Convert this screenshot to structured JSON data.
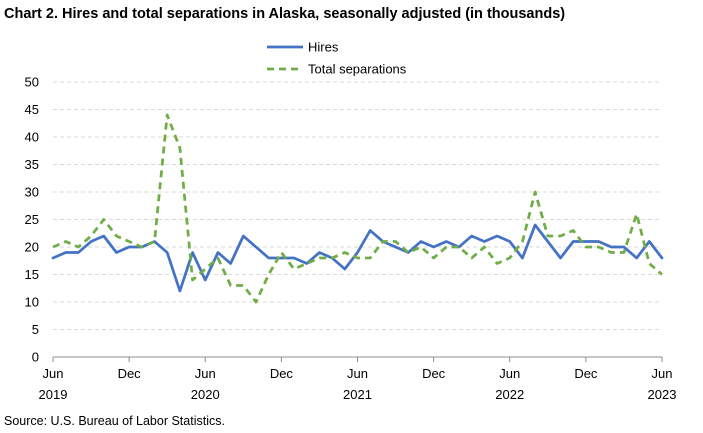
{
  "chart_data": {
    "type": "line",
    "title": "Chart 2. Hires and total separations in Alaska, seasonally adjusted (in thousands)",
    "source": "Source: U.S. Bureau of Labor Statistics.",
    "xlabel": "",
    "ylabel": "",
    "ylim": [
      0,
      50
    ],
    "y_ticks": [
      0,
      5,
      10,
      15,
      20,
      25,
      30,
      35,
      40,
      45,
      50
    ],
    "x_tick_labels": [
      {
        "month": "Jun",
        "year": "2019",
        "index": 0
      },
      {
        "month": "Dec",
        "year": "",
        "index": 6
      },
      {
        "month": "Jun",
        "year": "2020",
        "index": 12
      },
      {
        "month": "Dec",
        "year": "",
        "index": 18
      },
      {
        "month": "Jun",
        "year": "2021",
        "index": 24
      },
      {
        "month": "Dec",
        "year": "",
        "index": 30
      },
      {
        "month": "Jun",
        "year": "2022",
        "index": 36
      },
      {
        "month": "Dec",
        "year": "",
        "index": 42
      },
      {
        "month": "Jun",
        "year": "2023",
        "index": 48
      }
    ],
    "x": [
      "Jun 2019",
      "Jul 2019",
      "Aug 2019",
      "Sep 2019",
      "Oct 2019",
      "Nov 2019",
      "Dec 2019",
      "Jan 2020",
      "Feb 2020",
      "Mar 2020",
      "Apr 2020",
      "May 2020",
      "Jun 2020",
      "Jul 2020",
      "Aug 2020",
      "Sep 2020",
      "Oct 2020",
      "Nov 2020",
      "Dec 2020",
      "Jan 2021",
      "Feb 2021",
      "Mar 2021",
      "Apr 2021",
      "May 2021",
      "Jun 2021",
      "Jul 2021",
      "Aug 2021",
      "Sep 2021",
      "Oct 2021",
      "Nov 2021",
      "Dec 2021",
      "Jan 2022",
      "Feb 2022",
      "Mar 2022",
      "Apr 2022",
      "May 2022",
      "Jun 2022",
      "Jul 2022",
      "Aug 2022",
      "Sep 2022",
      "Oct 2022",
      "Nov 2022",
      "Dec 2022",
      "Jan 2023",
      "Feb 2023",
      "Mar 2023",
      "Apr 2023",
      "May 2023",
      "Jun 2023"
    ],
    "grid": true,
    "legend_placement": "top-center",
    "series": [
      {
        "name": "Hires",
        "color": "#4472C4",
        "style": "solid",
        "values": [
          18,
          19,
          19,
          21,
          22,
          19,
          20,
          20,
          21,
          19,
          12,
          19,
          14,
          19,
          17,
          22,
          20,
          18,
          18,
          18,
          17,
          19,
          18,
          16,
          19,
          23,
          21,
          20,
          19,
          21,
          20,
          21,
          20,
          22,
          21,
          22,
          21,
          18,
          24,
          21,
          18,
          21,
          21,
          21,
          20,
          20,
          18,
          21,
          18
        ]
      },
      {
        "name": "Total separations",
        "color": "#70AD47",
        "style": "dashed",
        "values": [
          20,
          21,
          20,
          22,
          25,
          22,
          21,
          20,
          21,
          44,
          38,
          14,
          16,
          18,
          13,
          13,
          10,
          15,
          19,
          16,
          17,
          18,
          18,
          19,
          18,
          18,
          21,
          21,
          19,
          20,
          18,
          20,
          20,
          18,
          20,
          17,
          18,
          21,
          30,
          22,
          22,
          23,
          20,
          20,
          19,
          19,
          26,
          17,
          15
        ]
      }
    ]
  }
}
